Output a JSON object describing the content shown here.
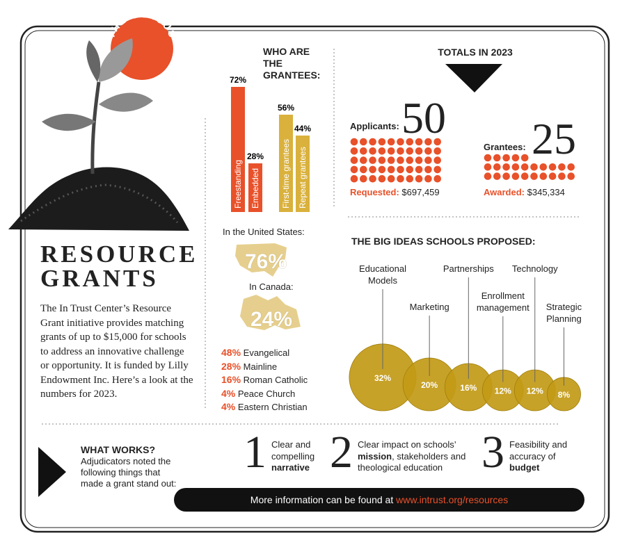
{
  "badge": "THE CENSUS",
  "title": "RESOURCE GRANTS",
  "intro": "The In Trust Center’s Resource Grant initiative provides matching grants of up to $15,000 for schools to address an innovative challenge or opportunity. It is funded by Lilly Endowment Inc. Here’s a look at the numbers for 2023.",
  "grantees": {
    "title": "WHO ARE THE GRANTEES:",
    "categories": [
      "Freestanding",
      "Embedded",
      "First-time grantees",
      "Repeat grantees"
    ],
    "values": [
      72,
      28,
      56,
      44
    ],
    "value_labels": [
      "72%",
      "28%",
      "56%",
      "44%"
    ],
    "colors": [
      "#e8512a",
      "#e8512a",
      "#d9b13c",
      "#d9b13c"
    ]
  },
  "location": {
    "us_label": "In the United States:",
    "us": "76%",
    "canada_label": "In Canada:",
    "canada": "24%"
  },
  "traditions": [
    {
      "share": "48%",
      "name": "Evangelical"
    },
    {
      "share": "28%",
      "name": "Mainline"
    },
    {
      "share": "16%",
      "name": "Roman Catholic"
    },
    {
      "share": "4%",
      "name": "Peace Church"
    },
    {
      "share": "4%",
      "name": "Eastern Christian"
    }
  ],
  "totals": {
    "title": "TOTALS IN 2023",
    "applicants": {
      "label": "Applicants:",
      "count": 50,
      "amount_label": "Requested:",
      "amount": "$697,459"
    },
    "grantees": {
      "label": "Grantees:",
      "count": 25,
      "amount_label": "Awarded:",
      "amount": "$345,334"
    }
  },
  "big_ideas": {
    "title": "THE BIG IDEAS SCHOOLS PROPOSED:",
    "categories": [
      "Educational Models",
      "Marketing",
      "Partnerships",
      "Enrollment management",
      "Technology",
      "Strategic Planning"
    ],
    "values": [
      32,
      20,
      16,
      12,
      12,
      8
    ],
    "value_labels": [
      "32%",
      "20%",
      "16%",
      "12%",
      "12%",
      "8%"
    ],
    "color": "#c29a16"
  },
  "what_works": {
    "title": "WHAT WORKS?",
    "text": "Adjudicators noted the following things that made a grant stand out:",
    "items": [
      {
        "number": "1",
        "parts": [
          {
            "text": "Clear and compelling "
          },
          {
            "strong": "narrative"
          }
        ]
      },
      {
        "number": "2",
        "parts": [
          {
            "text": "Clear impact on schools’ "
          },
          {
            "strong": "mission"
          },
          {
            "text": ", stakeholders and theological education"
          }
        ]
      },
      {
        "number": "3",
        "parts": [
          {
            "text": "Feasibility and accuracy of "
          },
          {
            "strong": "budget"
          }
        ]
      }
    ]
  },
  "footer": {
    "text": "More information can be found at",
    "link": "www.intrust.org/resources"
  }
}
